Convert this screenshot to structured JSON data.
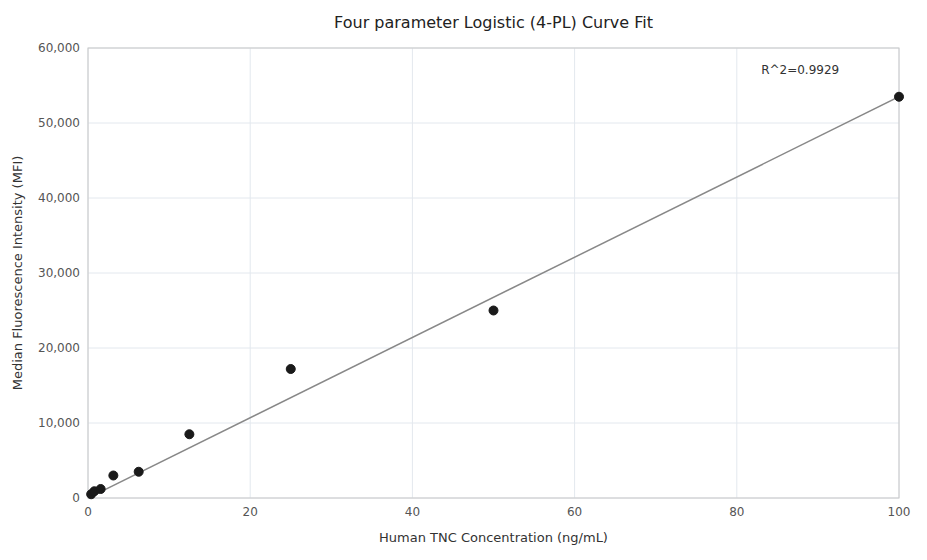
{
  "chart_data": {
    "type": "scatter",
    "title": "Four parameter Logistic (4-PL) Curve Fit",
    "xlabel": "Human TNC Concentration (ng/mL)",
    "ylabel": "Median Fluorescence Intensity (MFI)",
    "series": [
      {
        "type": "scatter",
        "color": "#1a1a1a",
        "marker": "circle",
        "x": [
          0.39,
          0.78,
          1.56,
          3.125,
          6.25,
          12.5,
          25.0,
          50.0,
          100.0
        ],
        "values": [
          500,
          900,
          1200,
          3000,
          3500,
          8500,
          17200,
          25000,
          53500
        ]
      },
      {
        "type": "line",
        "color": "#888888",
        "line_style": "solid",
        "x": [
          0.0,
          100.0
        ],
        "values": [
          0.0,
          53500.0
        ]
      }
    ],
    "annotations": [
      {
        "text": "R^2=0.9929",
        "x": 83.0,
        "y": 57000
      }
    ],
    "xlim": [
      0,
      100
    ],
    "ylim": [
      0,
      60000
    ],
    "xticks": [
      0,
      20,
      40,
      60,
      80,
      100
    ],
    "yticks": [
      0,
      {
        "value": 10000,
        "label": "10,000"
      },
      {
        "value": 20000,
        "label": "20,000"
      },
      {
        "value": 30000,
        "label": "30,000"
      },
      {
        "value": 40000,
        "label": "40,000"
      },
      {
        "value": 50000,
        "label": "50,000"
      },
      {
        "value": 60000,
        "label": "60,000"
      }
    ],
    "grid": true
  }
}
